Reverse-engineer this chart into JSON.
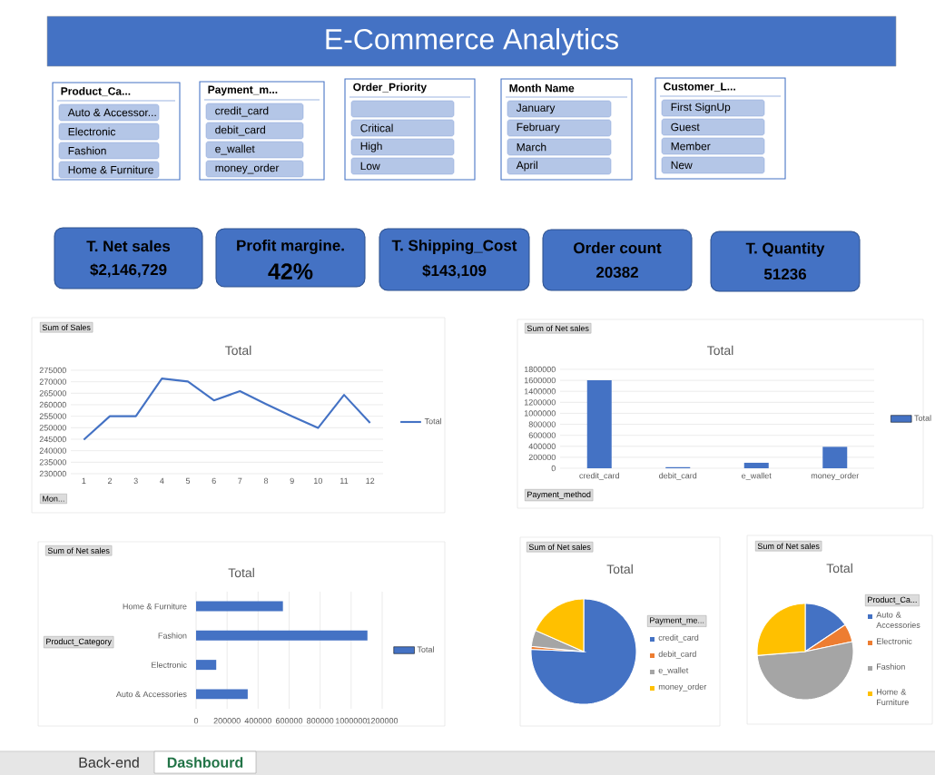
{
  "chart_data": [
    {
      "type": "other",
      "title": "E-Commerce Analytics",
      "annotations": [
        "Back-end",
        "Dashbourd"
      ]
    },
    {
      "type": "other",
      "title": "Product_Ca...",
      "annotations": [
        "Auto & Accessor...",
        "Electronic",
        "Fashion",
        "Home & Furniture"
      ]
    },
    {
      "type": "other",
      "title": "Payment_m...",
      "annotations": [
        "credit_card",
        "debit_card",
        "e_wallet",
        "money_order"
      ]
    },
    {
      "type": "other",
      "title": "Order_Priority",
      "annotations": [
        "Critical",
        "High",
        "Low"
      ]
    },
    {
      "type": "other",
      "title": "Month Name",
      "annotations": [
        "January",
        "February",
        "March",
        "April"
      ]
    },
    {
      "type": "other",
      "title": "Customer_L...",
      "annotations": [
        "First SignUp",
        "Guest",
        "Member",
        "New"
      ]
    },
    {
      "type": "other",
      "title": "T. Net sales",
      "annotations": [
        "$2,146,729"
      ]
    },
    {
      "type": "other",
      "title": "Profit margine.",
      "annotations": [
        "42%"
      ]
    },
    {
      "type": "other",
      "title": "T. Shipping_Cost",
      "annotations": [
        "$143,109"
      ]
    },
    {
      "type": "other",
      "title": "Order count",
      "annotations": [
        "20382"
      ]
    },
    {
      "type": "other",
      "title": "T.  Quantity",
      "annotations": [
        "51236"
      ]
    },
    {
      "type": "line",
      "title": "Total",
      "categories": [
        "1",
        "2",
        "3",
        "4",
        "5",
        "6",
        "7",
        "8",
        "9",
        "10",
        "11",
        "12"
      ],
      "series": [
        {
          "name": "Total",
          "color": "#4472c4",
          "values": [
            244800,
            255000,
            255000,
            271400,
            270100,
            261900,
            265900,
            260300,
            255000,
            249900,
            264300,
            252100
          ]
        }
      ],
      "ylim": [
        230000,
        275000
      ],
      "yticks": [
        230000,
        235000,
        240000,
        245000,
        250000,
        255000,
        260000,
        265000,
        270000,
        275000
      ],
      "grid": "y",
      "legend": "right",
      "annotations": [
        "Sum of Sales",
        "Mon..."
      ]
    },
    {
      "type": "bar",
      "title": "Total",
      "categories": [
        "credit_card",
        "debit_card",
        "e_wallet",
        "money_order"
      ],
      "series": [
        {
          "name": "Total",
          "color": "#4472c4",
          "values": [
            1600000,
            20000,
            100000,
            390000
          ]
        }
      ],
      "ylim": [
        0,
        1800000
      ],
      "yticks": [
        0,
        200000,
        400000,
        600000,
        800000,
        1000000,
        1200000,
        1400000,
        1600000,
        1800000
      ],
      "grid": "y",
      "legend": "right",
      "annotations": [
        "Sum of Net sales",
        "Payment_method"
      ]
    },
    {
      "type": "bar",
      "orientation": "horizontal",
      "title": "Total",
      "categories": [
        "Home & Furniture",
        "Fashion",
        "Electronic",
        "Auto & Accessories"
      ],
      "series": [
        {
          "name": "Total",
          "color": "#4472c4",
          "values": [
            560000,
            1105000,
            130000,
            333000
          ]
        }
      ],
      "xlim": [
        0,
        1200000
      ],
      "xticks": [
        0,
        200000,
        400000,
        600000,
        800000,
        1000000,
        1200000
      ],
      "grid": "x",
      "legend": "right",
      "annotations": [
        "Sum of Net sales",
        "Product_Category"
      ]
    },
    {
      "type": "pie",
      "title": "Total",
      "categories": [
        "credit_card",
        "debit_card",
        "e_wallet",
        "money_order"
      ],
      "values": [
        75.7,
        0.9,
        5.0,
        18.4
      ],
      "colors": [
        "#4472c4",
        "#ed7d31",
        "#a5a5a5",
        "#ffc000"
      ],
      "legend": "right",
      "legend_title": "Payment_me...",
      "annotations": [
        "Sum of Net sales"
      ]
    },
    {
      "type": "pie",
      "title": "Total",
      "categories": [
        "Auto & Accessories",
        "Electronic",
        "Fashion",
        "Home & Furniture"
      ],
      "values": [
        15.6,
        6.1,
        52.0,
        26.3
      ],
      "colors": [
        "#4472c4",
        "#ed7d31",
        "#a5a5a5",
        "#ffc000"
      ],
      "legend": "right",
      "legend_title": "Product_Ca...",
      "annotations": [
        "Sum of Net sales"
      ]
    }
  ]
}
